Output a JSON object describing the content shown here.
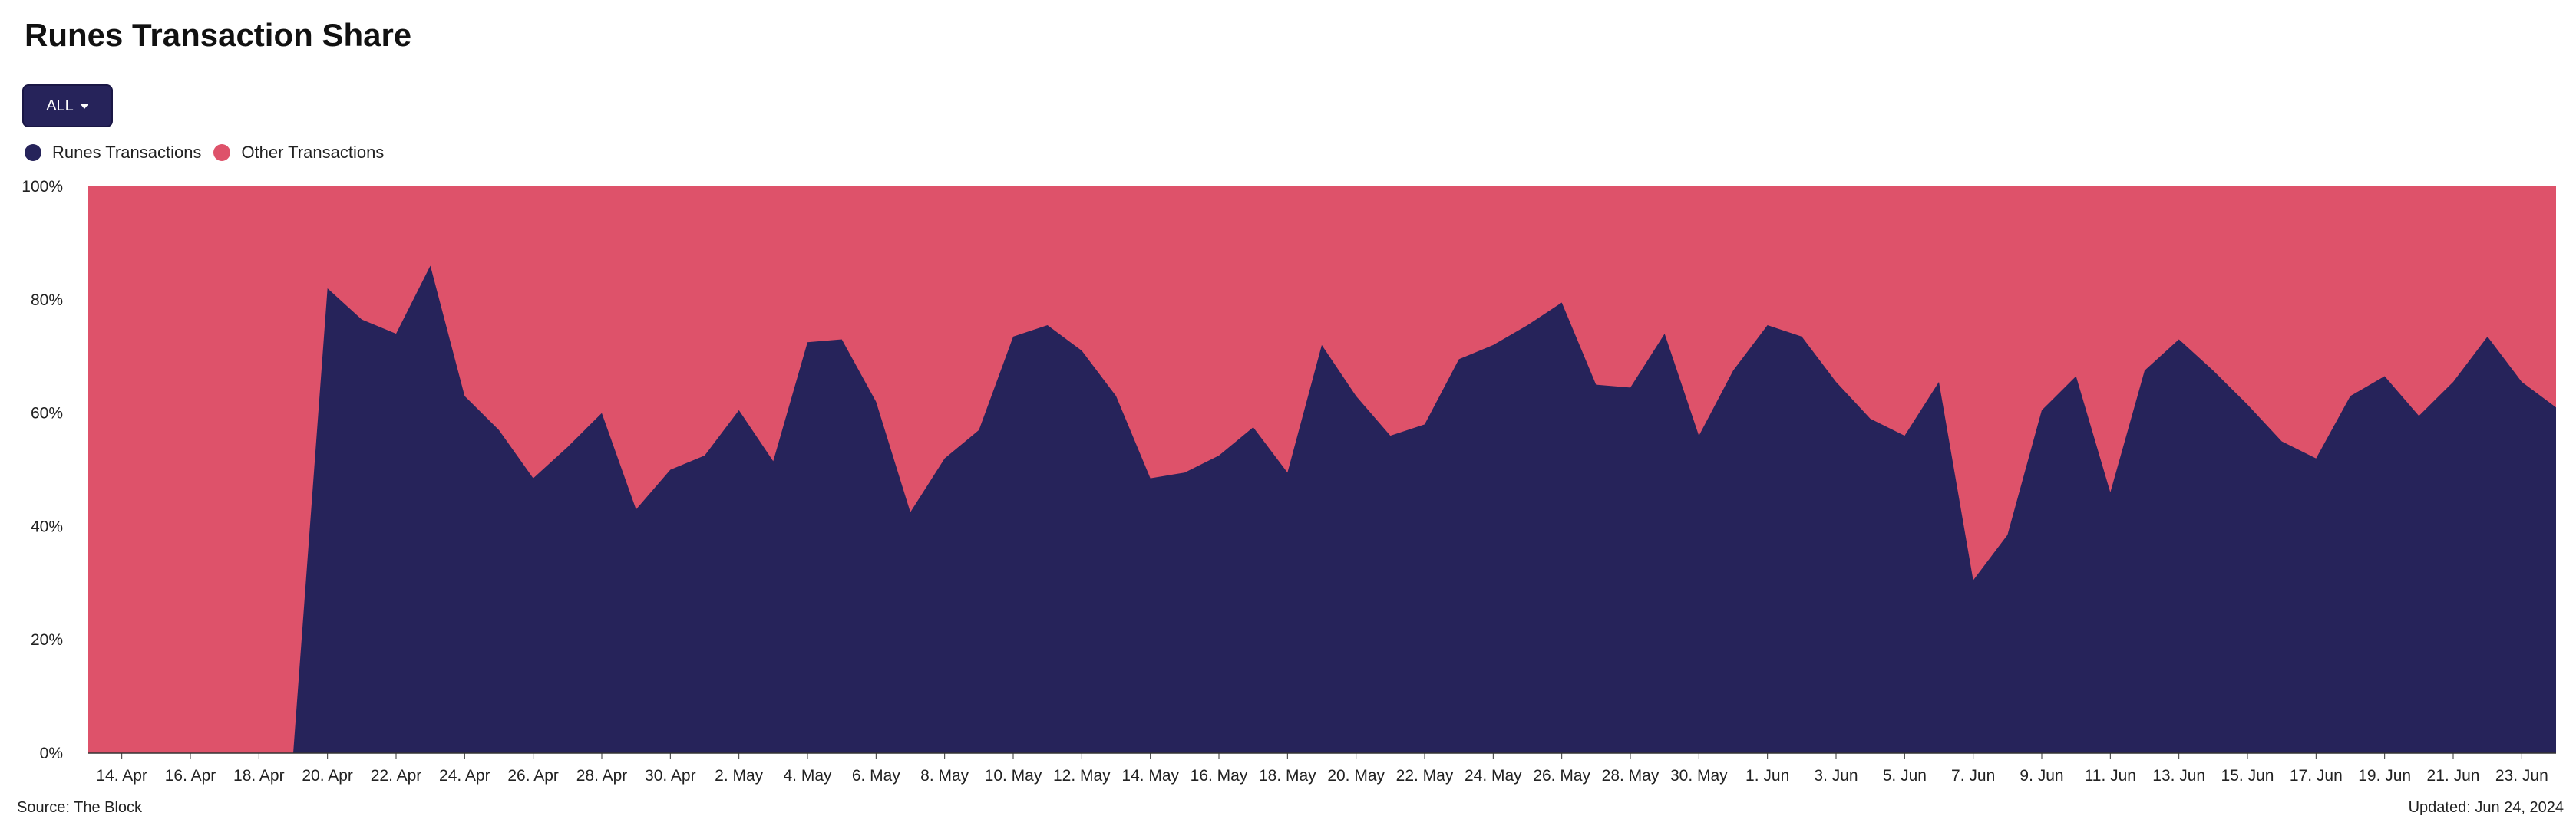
{
  "header": {
    "title": "Runes Transaction Share",
    "filter_label": "ALL"
  },
  "footer": {
    "source": "Source: The Block",
    "updated": "Updated: Jun 24, 2024"
  },
  "colors": {
    "runes": "#26235a",
    "other": "#de526a",
    "button": "#26235a"
  },
  "chart_data": {
    "type": "area",
    "stacked": true,
    "normalized_percent": true,
    "title": "Runes Transaction Share",
    "legend_position": "top-left",
    "grid": false,
    "ylim": [
      0,
      100
    ],
    "y_ticks": [
      "0%",
      "20%",
      "40%",
      "60%",
      "80%",
      "100%"
    ],
    "y_tick_values": [
      0,
      20,
      40,
      60,
      80,
      100
    ],
    "x_start": "2024-04-13",
    "x_tick_labels": [
      "14. Apr",
      "16. Apr",
      "18. Apr",
      "20. Apr",
      "22. Apr",
      "24. Apr",
      "26. Apr",
      "28. Apr",
      "30. Apr",
      "2. May",
      "4. May",
      "6. May",
      "8. May",
      "10. May",
      "12. May",
      "14. May",
      "16. May",
      "18. May",
      "20. May",
      "22. May",
      "24. May",
      "26. May",
      "28. May",
      "30. May",
      "1. Jun",
      "3. Jun",
      "5. Jun",
      "7. Jun",
      "9. Jun",
      "11. Jun",
      "13. Jun",
      "15. Jun",
      "17. Jun",
      "19. Jun",
      "21. Jun",
      "23. Jun"
    ],
    "series": [
      {
        "name": "Runes Transactions",
        "color": "#26235a",
        "values": [
          0,
          0,
          0,
          0,
          0,
          0,
          0,
          82,
          76.5,
          74,
          86,
          63,
          57,
          48.5,
          54,
          60,
          43,
          50,
          52.5,
          60.5,
          51.5,
          72.5,
          73,
          62,
          42.5,
          52,
          57,
          73.5,
          75.5,
          71,
          63,
          48.5,
          49.5,
          52.5,
          57.5,
          49.5,
          72,
          63,
          56,
          58,
          69.5,
          72,
          75.5,
          79.5,
          65,
          64.5,
          74,
          56,
          67.5,
          75.5,
          73.5,
          65.5,
          59,
          56,
          65.5,
          30.5,
          38.5,
          60.5,
          66.5,
          46,
          67.5,
          73,
          67.5,
          61.5,
          55,
          52,
          63,
          66.5,
          59.5,
          65.5,
          73.5,
          65.5,
          61
        ]
      },
      {
        "name": "Other Transactions",
        "color": "#de526a",
        "values": [
          100,
          100,
          100,
          100,
          100,
          100,
          100,
          18,
          23.5,
          26,
          14,
          37,
          43,
          51.5,
          46,
          40,
          57,
          50,
          47.5,
          39.5,
          48.5,
          27.5,
          27,
          38,
          57.5,
          48,
          43,
          26.5,
          24.5,
          29,
          37,
          51.5,
          50.5,
          47.5,
          42.5,
          50.5,
          28,
          37,
          44,
          42,
          30.5,
          28,
          24.5,
          20.5,
          35,
          35.5,
          26,
          44,
          32.5,
          24.5,
          26.5,
          34.5,
          41,
          44,
          34.5,
          69.5,
          61.5,
          39.5,
          33.5,
          54,
          32.5,
          27,
          32.5,
          38.5,
          45,
          48,
          37,
          33.5,
          40.5,
          34.5,
          26.5,
          34.5,
          39
        ]
      }
    ]
  }
}
